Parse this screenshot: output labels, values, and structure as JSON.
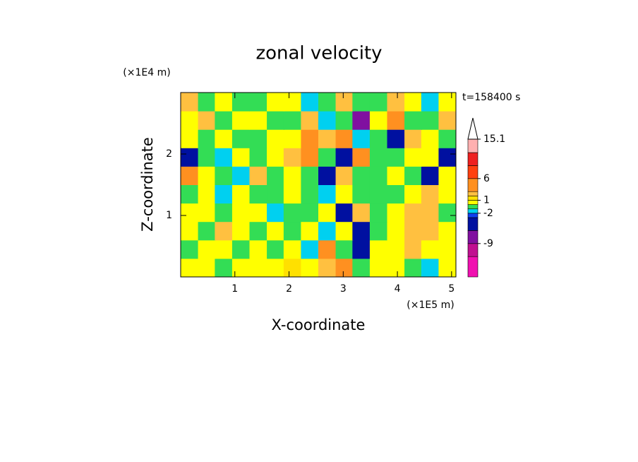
{
  "chart_data": {
    "type": "contour",
    "title": "zonal velocity",
    "time_label": "t=158400 s",
    "xlabel": "X-coordinate",
    "ylabel": "Z-coordinate",
    "x_unit": "(×1E5 m)",
    "y_unit": "(×1E4 m)",
    "xlim": [
      0,
      5.08
    ],
    "ylim": [
      0,
      3
    ],
    "xticks": [
      1,
      2,
      3,
      4,
      5
    ],
    "yticks": [
      1,
      2
    ],
    "x": [
      0.16,
      0.48,
      0.79,
      1.11,
      1.43,
      1.75,
      2.06,
      2.38,
      2.7,
      3.02,
      3.33,
      3.65,
      3.97,
      4.29,
      4.6,
      4.92
    ],
    "z": [
      0.15,
      0.45,
      0.75,
      1.05,
      1.35,
      1.65,
      1.95,
      2.25,
      2.55,
      2.85
    ],
    "values": [
      [
        0.5,
        0.5,
        -0.5,
        0.5,
        0.5,
        0.5,
        1.5,
        0.5,
        2.5,
        4,
        -0.5,
        0.5,
        0.5,
        -0.5,
        -2,
        0.5
      ],
      [
        -0.5,
        0.5,
        0.5,
        -0.5,
        0.5,
        -0.5,
        0.5,
        -1.5,
        4,
        -0.5,
        -4,
        0.5,
        0.5,
        2.5,
        0.5,
        0.5
      ],
      [
        0.5,
        -0.5,
        2.5,
        0.5,
        -0.5,
        0.5,
        -0.5,
        0.5,
        -1.5,
        0.5,
        -4,
        -0.5,
        0.5,
        2.5,
        2.5,
        0.5
      ],
      [
        0.5,
        0.5,
        -0.5,
        0.5,
        0.5,
        -1.5,
        -0.5,
        -0.5,
        0.5,
        -4,
        2.5,
        -0.5,
        0.5,
        2.5,
        2.5,
        -0.5
      ],
      [
        -0.5,
        0.5,
        -1.5,
        0.5,
        -0.5,
        -0.5,
        0.5,
        -0.5,
        -1.5,
        0.5,
        -0.5,
        -0.5,
        -0.5,
        0.5,
        2.5,
        0.5
      ],
      [
        4,
        0.5,
        -0.5,
        -1.5,
        2.5,
        -0.5,
        0.5,
        -0.5,
        -4,
        2.5,
        -0.5,
        -0.5,
        0.5,
        -0.5,
        -4,
        0.5
      ],
      [
        -4,
        -0.5,
        -1.5,
        0.5,
        -0.5,
        0.5,
        2.5,
        4,
        -0.5,
        -4,
        4,
        -0.5,
        -0.5,
        0.5,
        0.5,
        -4
      ],
      [
        0.5,
        -0.5,
        0.5,
        -0.5,
        -0.5,
        0.5,
        0.5,
        4,
        2.5,
        4,
        -1.5,
        -0.5,
        -4,
        2.5,
        0.5,
        -0.5
      ],
      [
        0.5,
        2.5,
        -0.5,
        0.5,
        0.5,
        -0.5,
        -0.5,
        2.5,
        -1.5,
        -0.5,
        -7,
        0.5,
        4,
        -0.5,
        -0.5,
        2.5
      ],
      [
        2.5,
        -0.5,
        0.5,
        -0.5,
        -0.5,
        0.5,
        0.5,
        -1.5,
        -0.5,
        2.5,
        -0.5,
        -0.5,
        2.5,
        0.5,
        -1.5,
        0.5
      ]
    ],
    "levels": [
      -16.7,
      -12,
      -9,
      -6,
      -3,
      -2,
      -1,
      0,
      1,
      2,
      3,
      6,
      9,
      12,
      15.1
    ],
    "colors": [
      "#f010b0",
      "#c01090",
      "#8010a0",
      "#0010a0",
      "#1040f0",
      "#00d0f0",
      "#33dd55",
      "#ffff00",
      "#ffe000",
      "#ffc040",
      "#ff9020",
      "#ff4010",
      "#ee2020",
      "#ffb0b0"
    ],
    "over_color": "#ffffff",
    "cbar_ticks": [
      15.1,
      6,
      1,
      -2,
      -9
    ]
  }
}
